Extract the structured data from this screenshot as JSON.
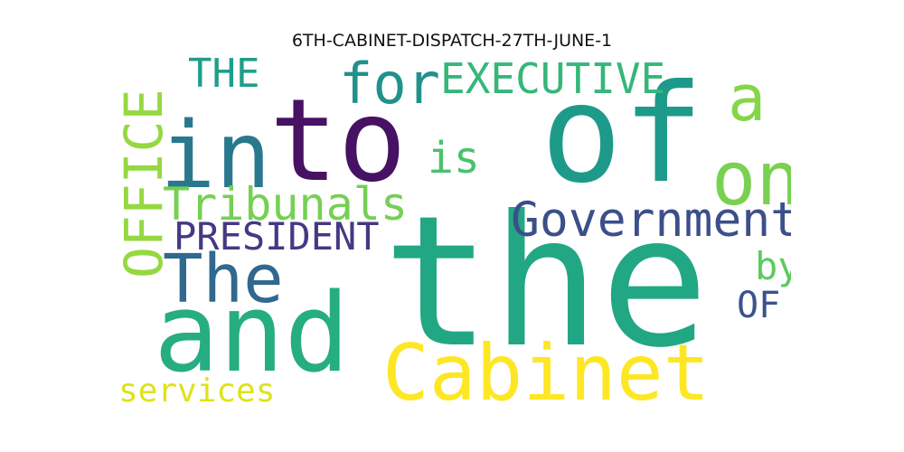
{
  "title": "6TH-CABINET-DISPATCH-27TH-JUNE-1",
  "words": {
    "the": {
      "text": "the",
      "color": "#22a784"
    },
    "of": {
      "text": "of",
      "color": "#1e9a8a"
    },
    "to": {
      "text": "to",
      "color": "#471164"
    },
    "and": {
      "text": "and",
      "color": "#26ad81"
    },
    "cabinet": {
      "text": "Cabinet",
      "color": "#fde725"
    },
    "in": {
      "text": "in",
      "color": "#2a788e"
    },
    "government": {
      "text": "Government",
      "color": "#3c4f8a"
    },
    "the_cap": {
      "text": "The",
      "color": "#31688e"
    },
    "on": {
      "text": "on",
      "color": "#7ad151"
    },
    "office": {
      "text": "OFFICE",
      "color": "#95d840"
    },
    "tribunals": {
      "text": "Tribunals",
      "color": "#75d054"
    },
    "for": {
      "text": "for",
      "color": "#21918c"
    },
    "a": {
      "text": "a",
      "color": "#86d549"
    },
    "executive": {
      "text": "EXECUTIVE",
      "color": "#35b779"
    },
    "president": {
      "text": "PRESIDENT",
      "color": "#443983"
    },
    "the_upper": {
      "text": "THE",
      "color": "#1f9e89"
    },
    "is": {
      "text": "is",
      "color": "#4ac16d"
    },
    "services": {
      "text": "services",
      "color": "#dde318"
    },
    "by": {
      "text": "by",
      "color": "#5ec962"
    },
    "of_upper": {
      "text": "OF",
      "color": "#3b528b"
    }
  }
}
